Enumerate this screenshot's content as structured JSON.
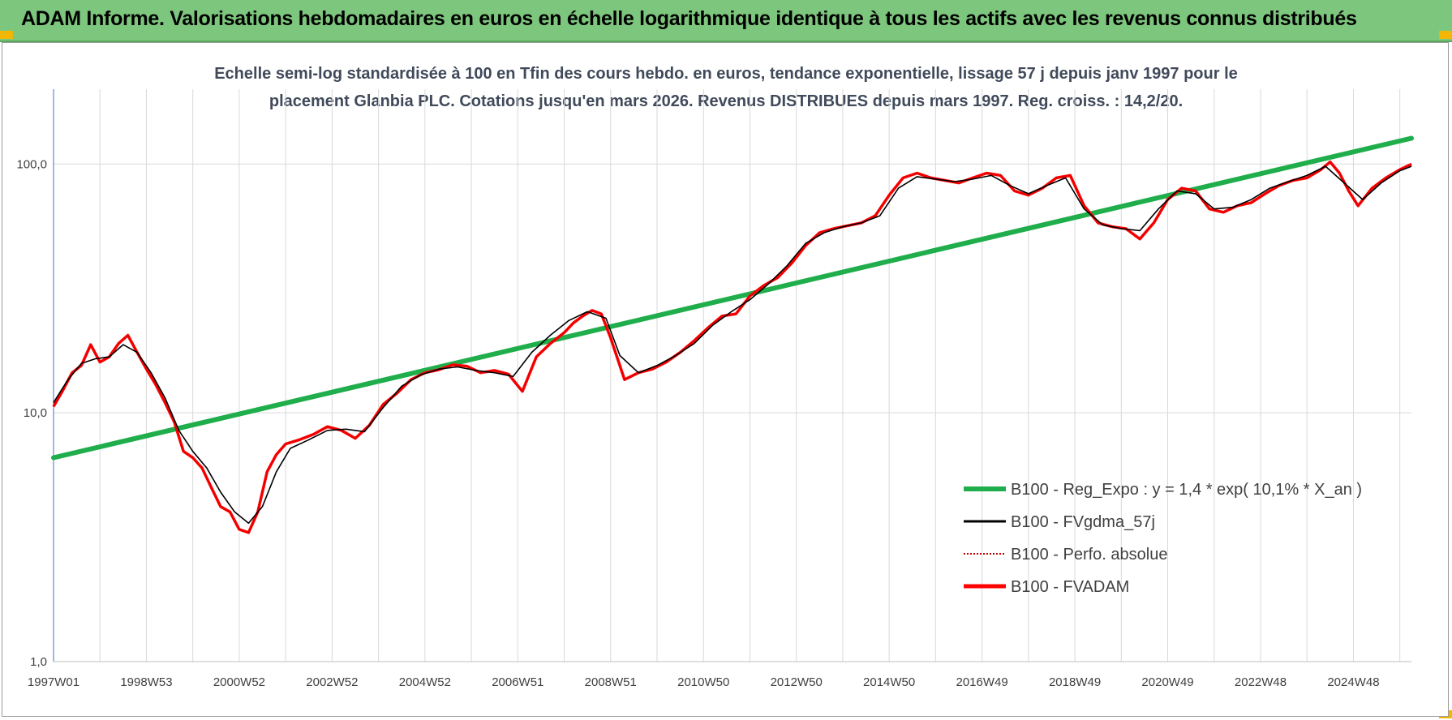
{
  "header": {
    "title": "ADAM Informe. Valorisations hebdomadaires en euros en échelle logarithmique identique à tous les actifs avec les revenus connus distribués"
  },
  "colors": {
    "banner": "#7dc67d",
    "regression": "#1fae4b",
    "moving_average": "#000000",
    "absolute": "#c00000",
    "fvadam": "#ff0000",
    "grid": "#d9d9d9",
    "accent_corner": "#f2b705"
  },
  "chart_data": {
    "type": "line",
    "title_lines": [
      "Echelle semi-log standardisée à 100 en Tfin des cours hebdo. en euros, tendance exponentielle, lissage 57 j depuis janv 1997 pour le",
      "placement Glanbia PLC. Cotations jusqu'en mars 2026. Revenus DISTRIBUES depuis mars 1997. Reg. croiss. : 14,2/20."
    ],
    "y_scale": "log",
    "ylim": [
      1,
      200
    ],
    "y_ticks": [
      {
        "value": 1,
        "label": "1,0"
      },
      {
        "value": 10,
        "label": "10,0"
      },
      {
        "value": 100,
        "label": "100,0"
      }
    ],
    "xlim": [
      1997.0,
      2026.25
    ],
    "x_ticks": [
      {
        "x": 1997.0,
        "label": "1997W01"
      },
      {
        "x": 1999.0,
        "label": "1998W53"
      },
      {
        "x": 2001.0,
        "label": "2000W52"
      },
      {
        "x": 2003.0,
        "label": "2002W52"
      },
      {
        "x": 2005.0,
        "label": "2004W52"
      },
      {
        "x": 2007.0,
        "label": "2006W51"
      },
      {
        "x": 2009.0,
        "label": "2008W51"
      },
      {
        "x": 2011.0,
        "label": "2010W50"
      },
      {
        "x": 2013.0,
        "label": "2012W50"
      },
      {
        "x": 2015.0,
        "label": "2014W50"
      },
      {
        "x": 2017.0,
        "label": "2016W49"
      },
      {
        "x": 2019.0,
        "label": "2018W49"
      },
      {
        "x": 2021.0,
        "label": "2020W49"
      },
      {
        "x": 2023.0,
        "label": "2022W48"
      },
      {
        "x": 2025.0,
        "label": "2024W48"
      }
    ],
    "grid": true,
    "legend_position": "bottom-right",
    "legend": [
      {
        "key": "reg",
        "label": "B100 - Reg_Expo : y = 1,4 * exp( 10,1% *  X_an )"
      },
      {
        "key": "ma",
        "label": "B100 - FVgdma_57j"
      },
      {
        "key": "abs",
        "label": "B100 - Perfo. absolue"
      },
      {
        "key": "fvadam",
        "label": "B100 - FVADAM"
      }
    ],
    "series": [
      {
        "key": "reg",
        "x": [
          1997.0,
          2026.25
        ],
        "y": [
          6.6,
          127
        ]
      },
      {
        "key": "fvadam",
        "x": [
          1997.0,
          1997.2,
          1997.4,
          1997.6,
          1997.8,
          1998.0,
          1998.2,
          1998.4,
          1998.6,
          1998.8,
          1999.0,
          1999.2,
          1999.4,
          1999.6,
          1999.8,
          2000.0,
          2000.2,
          2000.4,
          2000.6,
          2000.8,
          2001.0,
          2001.2,
          2001.4,
          2001.6,
          2001.8,
          2002.0,
          2002.3,
          2002.6,
          2002.9,
          2003.2,
          2003.5,
          2003.8,
          2004.1,
          2004.4,
          2004.7,
          2005.0,
          2005.3,
          2005.6,
          2005.9,
          2006.2,
          2006.5,
          2006.8,
          2007.1,
          2007.4,
          2007.7,
          2008.0,
          2008.2,
          2008.4,
          2008.6,
          2008.8,
          2009.0,
          2009.3,
          2009.6,
          2009.9,
          2010.2,
          2010.5,
          2010.8,
          2011.1,
          2011.4,
          2011.7,
          2012.0,
          2012.3,
          2012.6,
          2012.9,
          2013.2,
          2013.5,
          2013.8,
          2014.1,
          2014.4,
          2014.7,
          2015.0,
          2015.3,
          2015.6,
          2015.9,
          2016.2,
          2016.5,
          2016.8,
          2017.1,
          2017.4,
          2017.7,
          2018.0,
          2018.3,
          2018.6,
          2018.9,
          2019.2,
          2019.5,
          2019.8,
          2020.1,
          2020.4,
          2020.7,
          2021.0,
          2021.3,
          2021.6,
          2021.9,
          2022.2,
          2022.5,
          2022.8,
          2023.1,
          2023.4,
          2023.7,
          2024.0,
          2024.3,
          2024.5,
          2024.7,
          2024.9,
          2025.1,
          2025.4,
          2025.7,
          2026.0,
          2026.25
        ],
        "y": [
          10.6,
          12.3,
          14.5,
          15.5,
          18.8,
          16.0,
          16.8,
          19.0,
          20.5,
          17.5,
          15.0,
          13.0,
          11.0,
          9.2,
          7.0,
          6.6,
          6.0,
          5.0,
          4.2,
          4.0,
          3.4,
          3.3,
          4.0,
          5.8,
          6.8,
          7.5,
          7.8,
          8.2,
          8.8,
          8.5,
          7.9,
          8.9,
          10.8,
          12.0,
          13.6,
          14.5,
          14.9,
          15.6,
          15.4,
          14.5,
          14.8,
          14.3,
          12.2,
          16.8,
          19.0,
          21.0,
          23.0,
          24.5,
          25.8,
          25.0,
          20.0,
          13.6,
          14.5,
          15.0,
          16.0,
          17.5,
          19.5,
          22.0,
          24.5,
          25.0,
          29.5,
          32.5,
          35.0,
          40.0,
          47.0,
          53.0,
          55.0,
          56.5,
          58.0,
          62.0,
          75.0,
          88.0,
          92.0,
          88.0,
          86.0,
          84.0,
          88.0,
          92.0,
          90.0,
          78.0,
          75.0,
          80.0,
          88.0,
          90.0,
          68.0,
          58.0,
          56.0,
          55.0,
          50.0,
          58.0,
          72.0,
          80.0,
          78.0,
          66.0,
          64.0,
          68.0,
          70.0,
          76.0,
          82.0,
          86.0,
          88.0,
          95.0,
          102.0,
          92.0,
          78.0,
          68.0,
          80.0,
          88.0,
          95.0,
          100.0
        ]
      },
      {
        "key": "ma",
        "x": [
          1997.0,
          1997.3,
          1997.6,
          1997.9,
          1998.2,
          1998.5,
          1998.8,
          1999.1,
          1999.4,
          1999.7,
          2000.0,
          2000.3,
          2000.6,
          2000.9,
          2001.2,
          2001.5,
          2001.8,
          2002.1,
          2002.5,
          2002.9,
          2003.3,
          2003.7,
          2004.1,
          2004.5,
          2004.9,
          2005.3,
          2005.7,
          2006.1,
          2006.5,
          2006.9,
          2007.3,
          2007.7,
          2008.1,
          2008.5,
          2008.9,
          2009.2,
          2009.6,
          2010.0,
          2010.4,
          2010.8,
          2011.2,
          2011.6,
          2012.0,
          2012.4,
          2012.8,
          2013.2,
          2013.6,
          2014.0,
          2014.4,
          2014.8,
          2015.2,
          2015.6,
          2016.0,
          2016.4,
          2016.8,
          2017.2,
          2017.6,
          2018.0,
          2018.4,
          2018.8,
          2019.2,
          2019.6,
          2020.0,
          2020.4,
          2020.8,
          2021.2,
          2021.6,
          2022.0,
          2022.4,
          2022.8,
          2023.2,
          2023.6,
          2024.0,
          2024.4,
          2024.8,
          2025.2,
          2025.6,
          2026.0,
          2026.25
        ],
        "y": [
          11.0,
          13.5,
          15.8,
          16.5,
          16.8,
          18.8,
          17.5,
          14.5,
          11.5,
          8.5,
          7.0,
          6.0,
          4.8,
          4.0,
          3.6,
          4.2,
          5.8,
          7.2,
          7.8,
          8.5,
          8.6,
          8.4,
          10.5,
          12.8,
          14.2,
          15.0,
          15.3,
          14.8,
          14.5,
          14.0,
          17.5,
          20.5,
          23.5,
          25.5,
          24.0,
          17.0,
          14.5,
          15.5,
          17.0,
          19.0,
          22.5,
          25.5,
          28.5,
          33.0,
          39.0,
          48.0,
          53.0,
          56.0,
          58.0,
          62.0,
          80.0,
          89.0,
          87.0,
          85.0,
          87.0,
          90.0,
          82.0,
          76.0,
          82.0,
          88.0,
          66.0,
          57.0,
          55.0,
          54.0,
          66.0,
          78.0,
          76.0,
          66.0,
          67.0,
          72.0,
          80.0,
          85.0,
          90.0,
          98.0,
          84.0,
          72.0,
          84.0,
          94.0,
          98.0
        ]
      }
    ]
  }
}
